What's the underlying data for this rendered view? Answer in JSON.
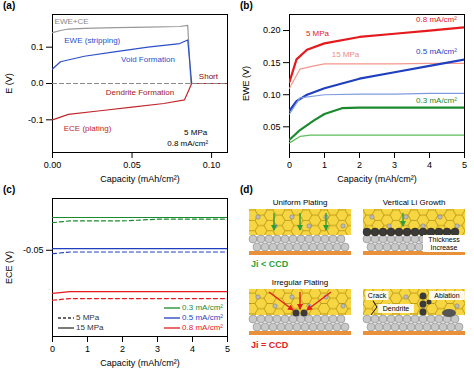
{
  "chart_data": [
    {
      "type": "line",
      "title": "(a)",
      "x_label": "Capacity (mAh/cm²)",
      "y_label": "E (V)",
      "xlim": [
        0,
        0.11
      ],
      "xticks": [
        {
          "value": 0,
          "label": "0.00"
        },
        0.05,
        {
          "value": 0.1,
          "label": "0.10"
        }
      ],
      "ylim": [
        -0.19,
        0.19
      ],
      "yticks": [
        -0.1,
        {
          "value": 0,
          "label": "0.0"
        },
        0.1
      ],
      "series": [
        {
          "color": "#999999",
          "line_style": "solid",
          "x": [
            0,
            0.005,
            0.01,
            0.02,
            0.04,
            0.06,
            0.08,
            0.085,
            0.087,
            0.11
          ],
          "values": [
            0.14,
            0.146,
            0.15,
            0.152,
            0.154,
            0.155,
            0.157,
            0.16,
            0,
            0
          ]
        },
        {
          "color": "#2b4fc9",
          "line_style": "solid",
          "x": [
            0,
            0.005,
            0.02,
            0.04,
            0.06,
            0.08,
            0.085,
            0.0875,
            0.11
          ],
          "values": [
            0.04,
            0.06,
            0.075,
            0.088,
            0.1,
            0.11,
            0.12,
            0,
            0
          ]
        },
        {
          "color": "#c0282d",
          "line_style": "solid",
          "x": [
            0,
            0.01,
            0.03,
            0.05,
            0.07,
            0.083,
            0.0875,
            0.11
          ],
          "values": [
            -0.1,
            -0.085,
            -0.075,
            -0.065,
            -0.055,
            -0.045,
            0,
            0
          ]
        },
        {
          "color": "#888888",
          "line_style": "dashed",
          "x": [
            0,
            0.11
          ],
          "values": [
            0,
            0
          ]
        }
      ],
      "annotations": [
        {
          "text": "EWE+CE",
          "x": 0.012,
          "y": 0.172,
          "color": "#888888"
        },
        {
          "text": "EWE (stripping)",
          "x": 0.025,
          "y": 0.118,
          "color": "#2b4fc9"
        },
        {
          "text": "Void Formation",
          "x": 0.06,
          "y": 0.066,
          "color": "#2b4fc9"
        },
        {
          "text": "Dendrite Formation",
          "x": 0.055,
          "y": -0.025,
          "color": "#a0191c"
        },
        {
          "text": "ECE (plating)",
          "x": 0.022,
          "y": -0.125,
          "color": "#c0282d"
        },
        {
          "text": "Short",
          "x": 0.098,
          "y": 0.02,
          "color": "#8b0000"
        },
        {
          "text": "5 MPa",
          "x": 0.09,
          "y": -0.135,
          "color": "#000000"
        },
        {
          "text": "0.8 mA/cm²",
          "x": 0.085,
          "y": -0.165,
          "color": "#000000"
        }
      ]
    },
    {
      "type": "line",
      "title": "(b)",
      "x_label": "Capacity (mAh/cm²)",
      "y_label": "EWE (V)",
      "xlim": [
        0,
        5
      ],
      "xticks": [
        0,
        1,
        2,
        3,
        4,
        5
      ],
      "ylim": [
        0.01,
        0.225
      ],
      "yticks": [
        0.05,
        {
          "value": 0.1,
          "label": "0.10"
        },
        0.15,
        {
          "value": 0.2,
          "label": "0.20"
        }
      ],
      "series": [
        {
          "color": "#e41a1c",
          "line_style": "bold",
          "x": [
            0,
            0.2,
            0.5,
            1,
            2,
            3,
            4,
            5
          ],
          "values": [
            0.12,
            0.155,
            0.17,
            0.18,
            0.19,
            0.195,
            0.2,
            0.205
          ]
        },
        {
          "color": "#f4978e",
          "line_style": "solid",
          "x": [
            0,
            0.3,
            0.7,
            1,
            2,
            3,
            4,
            5
          ],
          "values": [
            0.11,
            0.14,
            0.145,
            0.148,
            0.148,
            0.148,
            0.149,
            0.149
          ]
        },
        {
          "color": "#1f3fbf",
          "line_style": "bold",
          "x": [
            0,
            0.2,
            0.5,
            1,
            2,
            3,
            4,
            5
          ],
          "values": [
            0.075,
            0.09,
            0.1,
            0.11,
            0.125,
            0.135,
            0.145,
            0.155
          ]
        },
        {
          "color": "#7f9be0",
          "line_style": "solid",
          "x": [
            0,
            0.3,
            1,
            2,
            3,
            4,
            5
          ],
          "values": [
            0.07,
            0.095,
            0.1,
            0.101,
            0.101,
            0.102,
            0.102
          ]
        },
        {
          "color": "#1a8a2e",
          "line_style": "bold",
          "x": [
            0,
            0.3,
            0.7,
            1,
            1.5,
            2,
            3,
            4,
            5
          ],
          "values": [
            0.03,
            0.045,
            0.06,
            0.07,
            0.079,
            0.08,
            0.08,
            0.08,
            0.08
          ]
        },
        {
          "color": "#5cbf5c",
          "line_style": "solid",
          "x": [
            0,
            0.3,
            0.6,
            1,
            2,
            3,
            4,
            5
          ],
          "values": [
            0.025,
            0.035,
            0.037,
            0.037,
            0.037,
            0.037,
            0.037,
            0.037
          ]
        }
      ],
      "annotations": [
        {
          "text": "5 MPa",
          "x": 0.8,
          "y": 0.196,
          "color": "#e41a1c"
        },
        {
          "text": "15 MPa",
          "x": 1.6,
          "y": 0.163,
          "color": "#f08a80"
        },
        {
          "text": "0.8 mA/cm²",
          "x": 4.2,
          "y": 0.217,
          "color": "#e41a1c"
        },
        {
          "text": "0.5 mA/cm²",
          "x": 4.2,
          "y": 0.168,
          "color": "#1f3fbf"
        },
        {
          "text": "0.3 mA/cm²",
          "x": 4.2,
          "y": 0.091,
          "color": "#1a8a2e"
        }
      ]
    },
    {
      "type": "line",
      "title": "(c)",
      "x_label": "Capacity (mAh/cm²)",
      "y_label": "ECE (V)",
      "xlim": [
        0,
        5
      ],
      "xticks": [
        0,
        1,
        2,
        3,
        4,
        5
      ],
      "ylim": [
        -0.1,
        -0.02
      ],
      "yticks": [
        -0.05
      ],
      "series": [
        {
          "color": "#1a8a2e",
          "line_style": "dashed",
          "x": [
            0,
            0.5,
            1,
            2,
            3,
            4,
            5
          ],
          "values": [
            -0.034,
            -0.033,
            -0.033,
            -0.033,
            -0.032,
            -0.032,
            -0.032
          ]
        },
        {
          "color": "#1a8a2e",
          "line_style": "solid",
          "x": [
            0,
            0.5,
            1,
            2,
            3,
            4,
            5
          ],
          "values": [
            -0.031,
            -0.031,
            -0.031,
            -0.031,
            -0.031,
            -0.031,
            -0.031
          ]
        },
        {
          "color": "#1f3fbf",
          "line_style": "dashed",
          "x": [
            0,
            0.5,
            1,
            2,
            3,
            4,
            5
          ],
          "values": [
            -0.052,
            -0.051,
            -0.051,
            -0.051,
            -0.051,
            -0.051,
            -0.051
          ]
        },
        {
          "color": "#1f3fbf",
          "line_style": "solid",
          "x": [
            0,
            0.5,
            1,
            2,
            3,
            4,
            5
          ],
          "values": [
            -0.049,
            -0.049,
            -0.049,
            -0.049,
            -0.049,
            -0.049,
            -0.049
          ]
        },
        {
          "color": "#e41a1c",
          "line_style": "dashed",
          "x": [
            0,
            0.5,
            1,
            2,
            3,
            4,
            5
          ],
          "values": [
            -0.079,
            -0.078,
            -0.078,
            -0.078,
            -0.078,
            -0.078,
            -0.078
          ]
        },
        {
          "color": "#e41a1c",
          "line_style": "solid",
          "x": [
            0,
            0.5,
            1,
            2,
            3,
            4,
            5
          ],
          "values": [
            -0.075,
            -0.074,
            -0.074,
            -0.074,
            -0.074,
            -0.074,
            -0.074
          ]
        }
      ],
      "legends": [
        {
          "legend": "lower left",
          "entries": [
            {
              "text": "5 MPa",
              "color": "#333333",
              "line_style": "dashed"
            },
            {
              "text": "15 MPa",
              "color": "#333333",
              "line_style": "solid"
            }
          ]
        },
        {
          "legend": "lower right",
          "entries": [
            {
              "text": "0.3 mA/cm²",
              "color": "#1a8a2e",
              "line_style": "solid"
            },
            {
              "text": "0.5 mA/cm²",
              "color": "#1f3fbf",
              "line_style": "solid"
            },
            {
              "text": "0.8 mA/cm²",
              "color": "#e41a1c",
              "line_style": "solid"
            }
          ]
        }
      ]
    }
  ],
  "diagram": {
    "title": "(d)",
    "panels": [
      {
        "label": "Uniform Plating"
      },
      {
        "label": "Vertical Li Growth",
        "notes": [
          "Thickness Increase"
        ]
      },
      {
        "label": "Irregular Plating"
      },
      {
        "notes": [
          "Crack",
          "Dendrite",
          "Ablation"
        ]
      }
    ],
    "conditions": [
      {
        "text": "Ji < CCD",
        "color": "#2e9e3a"
      },
      {
        "text": "Ji = CCD",
        "color": "#e0201b"
      }
    ]
  }
}
